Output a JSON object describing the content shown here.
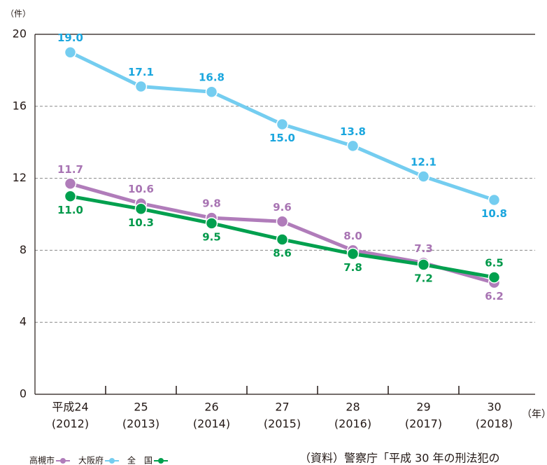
{
  "chart_data": {
    "type": "line",
    "y_unit": "（件）",
    "x_unit": "（年）",
    "categories": [
      "平成24",
      "25",
      "26",
      "27",
      "28",
      "29",
      "30"
    ],
    "categories_sub": [
      "(2012)",
      "(2013)",
      "(2014)",
      "(2015)",
      "(2016)",
      "(2017)",
      "(2018)"
    ],
    "series": [
      {
        "name": "大阪府",
        "color": "#74cdf0",
        "values": [
          19.0,
          17.1,
          16.8,
          15.0,
          13.8,
          12.1,
          10.8
        ],
        "value_labels": [
          "19.0",
          "17.1",
          "16.8",
          "15.0",
          "13.8",
          "12.1",
          "10.8"
        ],
        "label_color": "#1aa6de"
      },
      {
        "name": "高槻市",
        "color": "#b07cba",
        "values": [
          11.7,
          10.6,
          9.8,
          9.6,
          8.0,
          7.3,
          6.2
        ],
        "value_labels": [
          "11.7",
          "10.6",
          "9.8",
          "9.6",
          "8.0",
          "7.3",
          "6.2"
        ],
        "label_color": "#a874b3"
      },
      {
        "name": "全　国",
        "color": "#00a04e",
        "values": [
          11.0,
          10.3,
          9.5,
          8.6,
          7.8,
          7.2,
          6.5
        ],
        "value_labels": [
          "11.0",
          "10.3",
          "9.5",
          "8.6",
          "7.8",
          "7.2",
          "6.5"
        ],
        "label_color": "#00994a"
      }
    ],
    "ylim": [
      0,
      20
    ],
    "yticks": [
      0,
      4,
      8,
      12,
      16,
      20
    ],
    "grid": true,
    "source": "（資料）警察庁「平成 30 年の刑法犯の"
  }
}
